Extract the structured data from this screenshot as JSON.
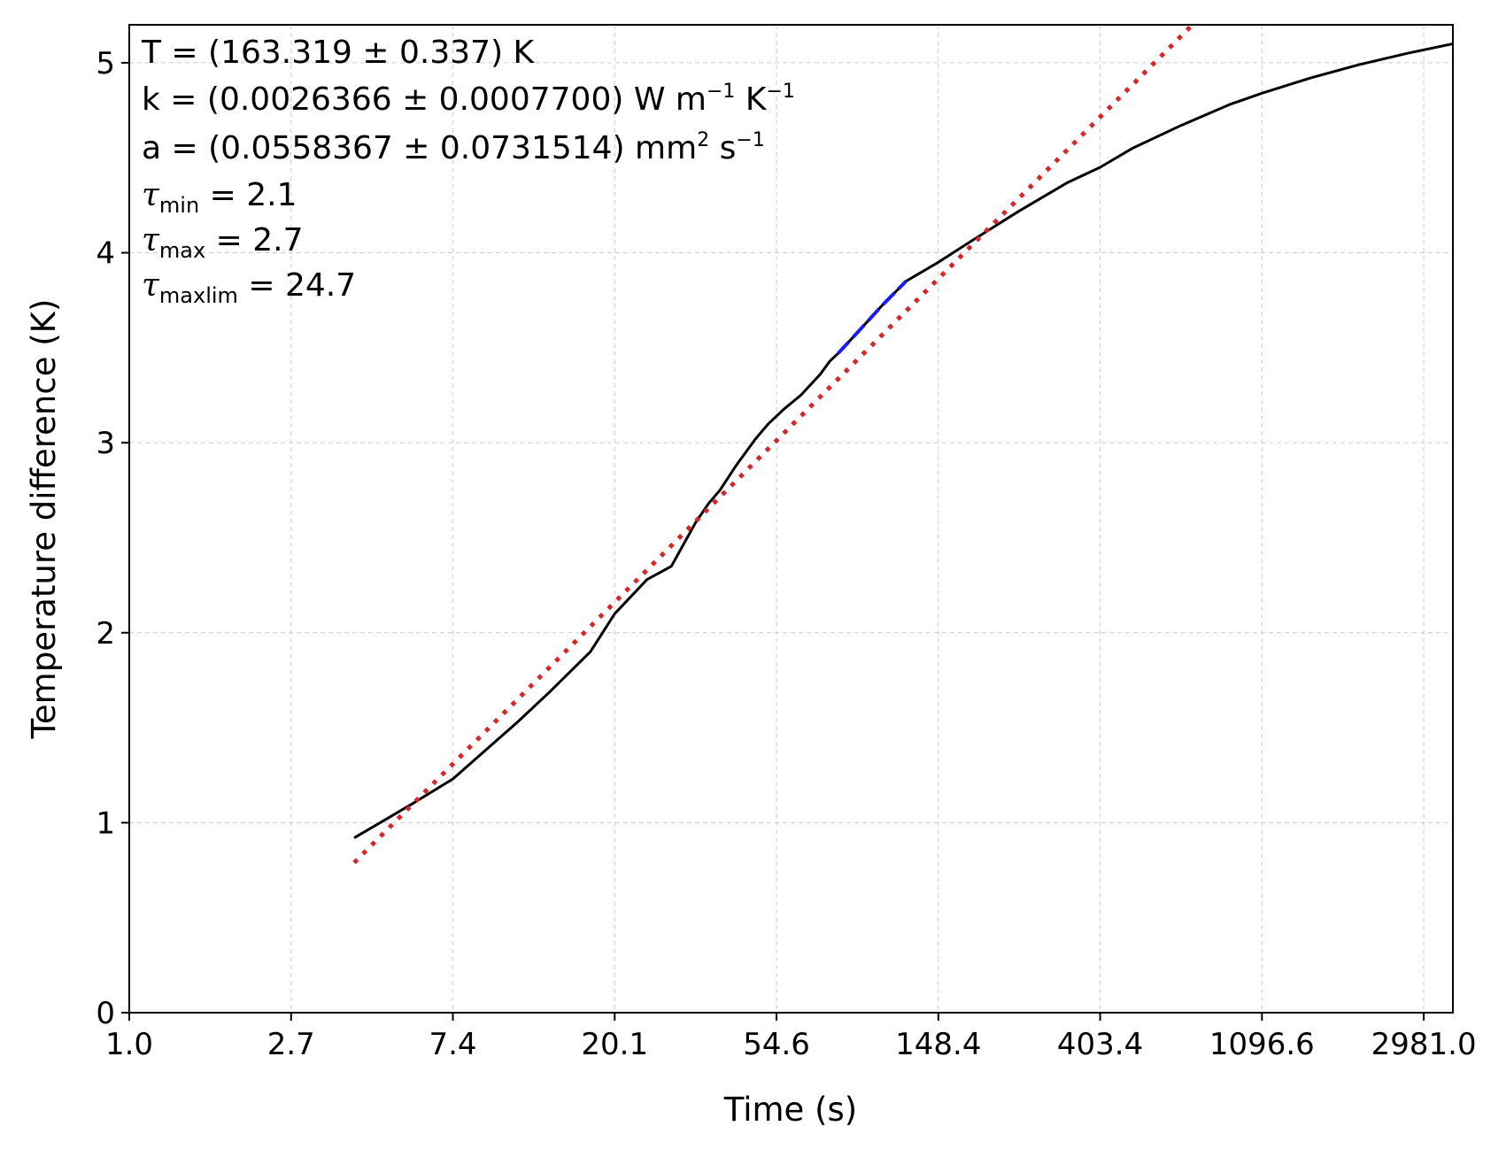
{
  "chart_data": {
    "type": "line",
    "title": "",
    "xlabel": "Time (s)",
    "ylabel": "Temperature difference (K)",
    "xscale": "natural-log",
    "x_tick_labels": [
      "1.0",
      "2.7",
      "7.4",
      "20.1",
      "54.6",
      "148.4",
      "403.4",
      "1096.6",
      "2981.0"
    ],
    "x_tick_ln": [
      0,
      1,
      2,
      3,
      4,
      5,
      6,
      7,
      8
    ],
    "y_tick_labels": [
      "0",
      "1",
      "2",
      "3",
      "4",
      "5"
    ],
    "y_tick_values": [
      0,
      1,
      2,
      3,
      4,
      5
    ],
    "xlim_ln": [
      0,
      8.18
    ],
    "ylim": [
      0,
      5.2
    ],
    "grid": true,
    "series": [
      {
        "name": "measured",
        "color": "#000000",
        "style": "solid",
        "ln_t": [
          1.39,
          1.55,
          1.75,
          2.0,
          2.2,
          2.4,
          2.6,
          2.85,
          3.0,
          3.2,
          3.35,
          3.5,
          3.58,
          3.65,
          3.75,
          3.87,
          3.95,
          4.05,
          4.15,
          4.27,
          4.33,
          4.38,
          4.5,
          4.65,
          4.8,
          5.0,
          5.2,
          5.5,
          5.8,
          6.0,
          6.2,
          6.5,
          6.8,
          7.0,
          7.3,
          7.6,
          7.9,
          8.18
        ],
        "dT": [
          0.92,
          1.0,
          1.1,
          1.23,
          1.38,
          1.53,
          1.69,
          1.9,
          2.1,
          2.28,
          2.35,
          2.58,
          2.68,
          2.75,
          2.88,
          3.02,
          3.1,
          3.18,
          3.25,
          3.36,
          3.43,
          3.47,
          3.58,
          3.72,
          3.85,
          3.95,
          4.06,
          4.22,
          4.37,
          4.45,
          4.55,
          4.67,
          4.78,
          4.84,
          4.92,
          4.99,
          5.05,
          5.1
        ]
      },
      {
        "name": "fit window",
        "color": "#1a1aff",
        "style": "dashed",
        "ln_t": [
          4.38,
          4.5,
          4.65,
          4.8
        ],
        "dT": [
          3.47,
          3.58,
          3.72,
          3.85
        ]
      },
      {
        "name": "linear fit",
        "color": "#d62728",
        "style": "dotted",
        "ln_t": [
          1.39,
          6.57
        ],
        "dT": [
          0.79,
          5.2
        ]
      }
    ],
    "annotations": {
      "T": "T = (163.319 ± 0.337) K",
      "k_main": "k = (0.0026366 ± 0.0007700) W m",
      "k_exp1": "−1",
      "k_unit2": " K",
      "k_exp2": "−1",
      "a_main": "a = (0.0558367 ± 0.0731514) mm",
      "a_exp1": "2",
      "a_unit2": " s",
      "a_exp2": "−1",
      "tau_symbol": "τ",
      "tau_min_sub": "min",
      "tau_min_val": " = 2.1",
      "tau_max_sub": "max",
      "tau_max_val": " = 2.7",
      "tau_maxlim_sub": "maxlim",
      "tau_maxlim_val": " = 24.7"
    }
  }
}
